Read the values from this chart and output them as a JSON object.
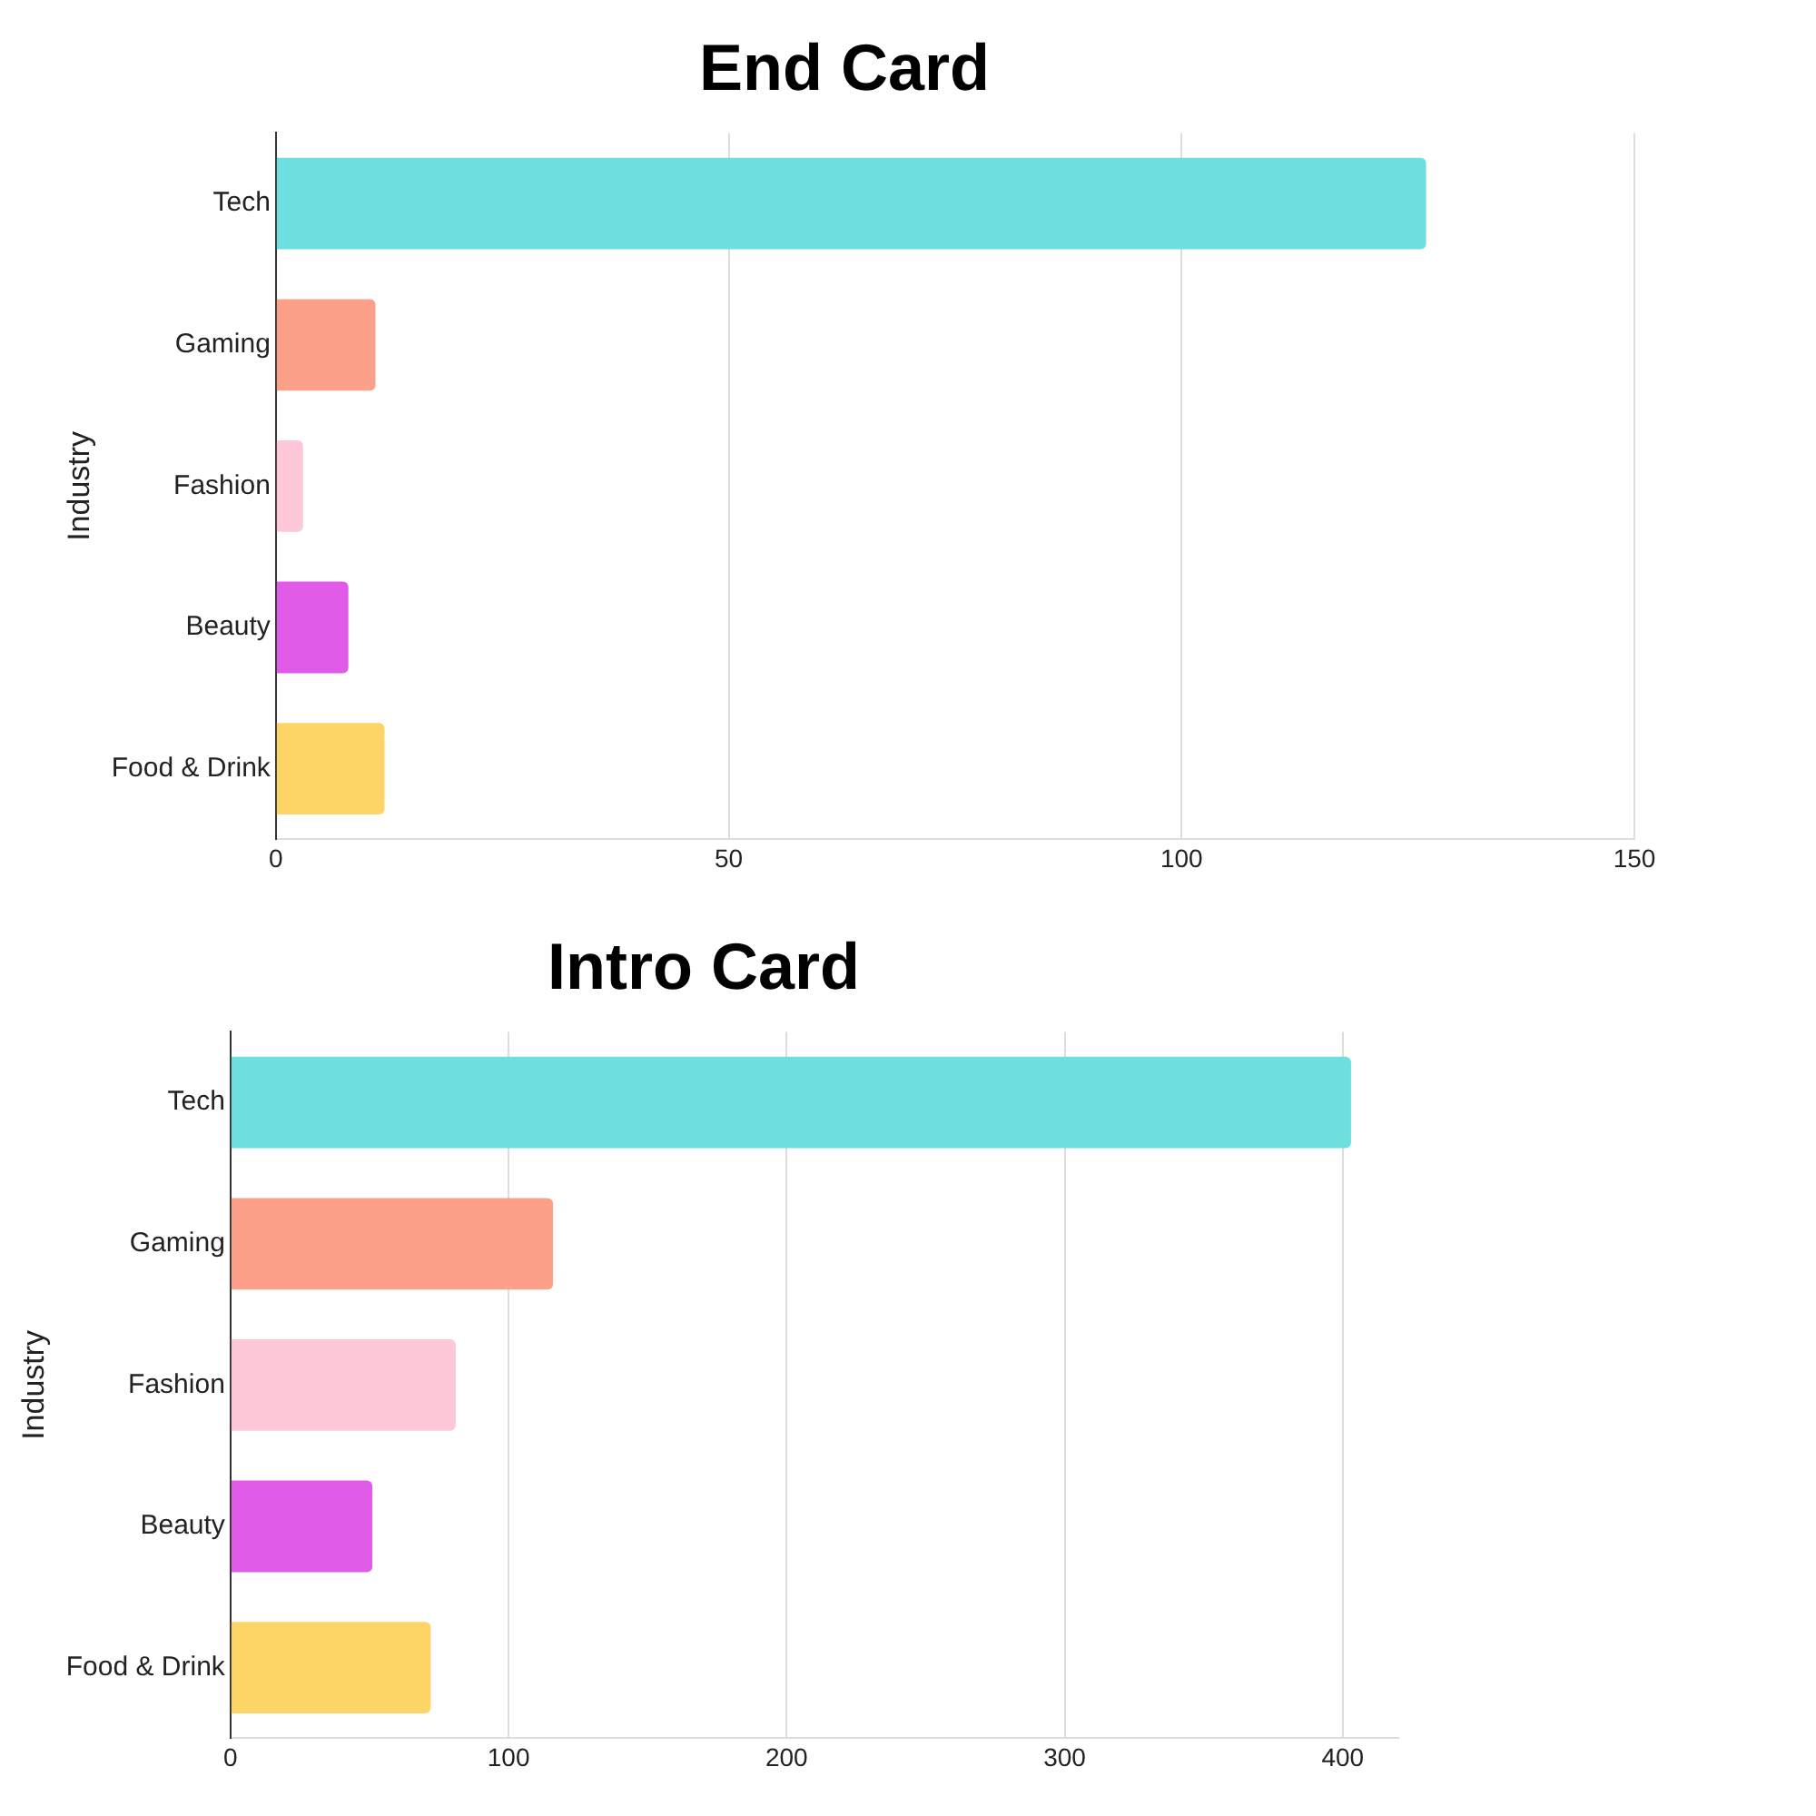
{
  "chart_data": [
    {
      "type": "bar",
      "orientation": "horizontal",
      "title": "End Card",
      "ylabel": "Industry",
      "categories": [
        "Tech",
        "Gaming",
        "Fashion",
        "Beauty",
        "Food & Drink"
      ],
      "values": [
        127,
        11,
        3,
        8,
        12
      ],
      "colors": [
        "#6ddfdf",
        "#fda08a",
        "#fec8d8",
        "#e05be8",
        "#fdd466"
      ],
      "xlim": [
        0,
        150
      ],
      "xticks": [
        0,
        50,
        100,
        150
      ],
      "grid": "x",
      "legend": false
    },
    {
      "type": "bar",
      "orientation": "horizontal",
      "title": "Intro Card",
      "ylabel": "Industry",
      "categories": [
        "Tech",
        "Gaming",
        "Fashion",
        "Beauty",
        "Food & Drink"
      ],
      "values": [
        403,
        116,
        81,
        51,
        72
      ],
      "colors": [
        "#6ddfdf",
        "#fda08a",
        "#fec8d8",
        "#e05be8",
        "#fdd466"
      ],
      "xlim": [
        0,
        420
      ],
      "xticks": [
        0,
        100,
        200,
        300,
        400
      ],
      "grid": "x",
      "legend": false
    }
  ]
}
